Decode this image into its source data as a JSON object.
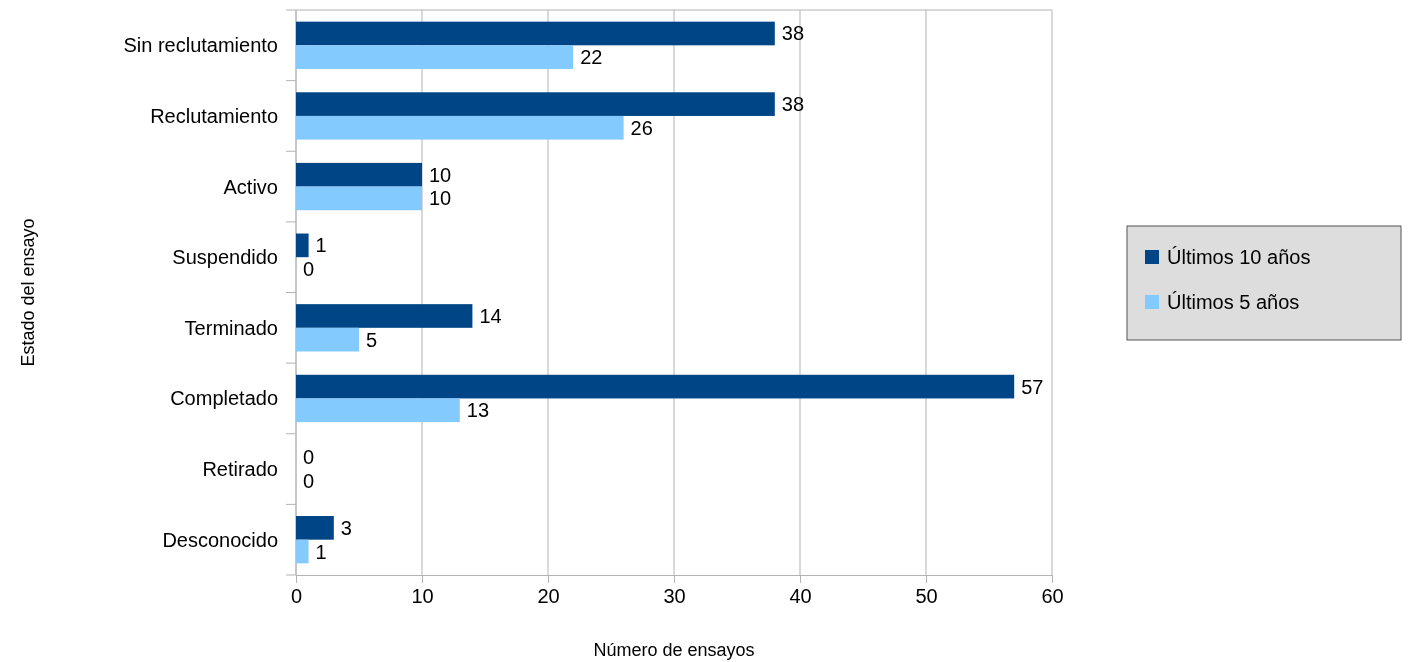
{
  "chart_data": {
    "type": "bar",
    "orientation": "horizontal",
    "xlabel": "Número de ensayos",
    "ylabel": "Estado del ensayo",
    "categories": [
      "Sin reclutamiento",
      "Reclutamiento",
      "Activo",
      "Suspendido",
      "Terminado",
      "Completado",
      "Retirado",
      "Desconocido"
    ],
    "series": [
      {
        "name": "Últimos 10 años",
        "color": "#004586",
        "values": [
          38,
          38,
          10,
          1,
          14,
          57,
          0,
          3
        ]
      },
      {
        "name": "Últimos 5 años",
        "color": "#83caff",
        "values": [
          22,
          26,
          10,
          0,
          5,
          13,
          0,
          1
        ]
      }
    ],
    "xlim": [
      0,
      60
    ],
    "xticks": [
      0,
      10,
      20,
      30,
      40,
      50,
      60
    ],
    "grid": "x",
    "legend": "right",
    "data_labels": true
  }
}
